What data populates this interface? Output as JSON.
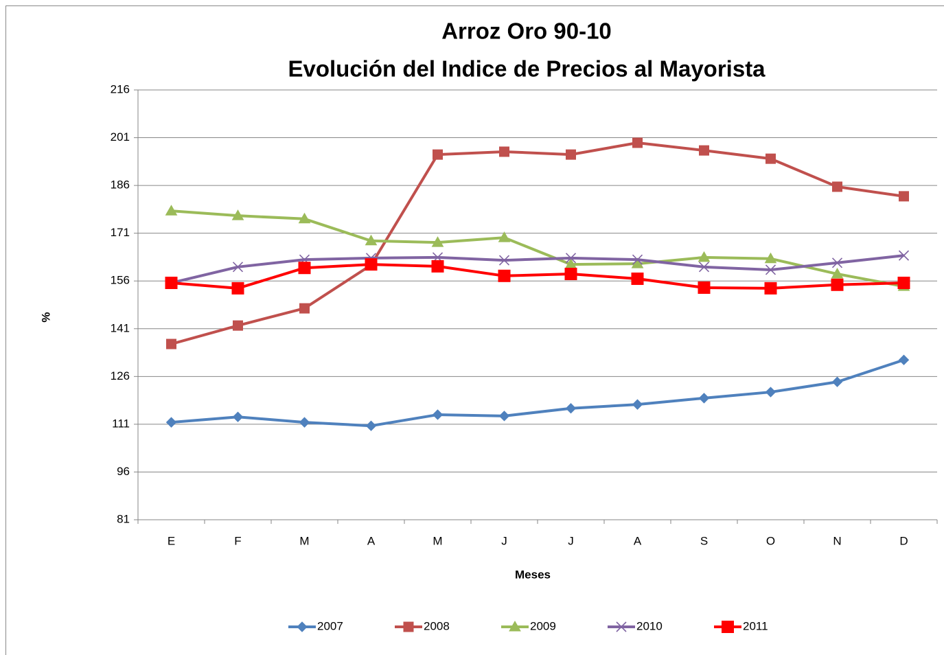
{
  "chart_data": {
    "type": "line",
    "title": "Arroz Oro 90-10",
    "subtitle": "Evolución del Indice de Precios al Mayorista",
    "x_label": "Meses",
    "y_label": "%",
    "categories": [
      "E",
      "F",
      "M",
      "A",
      "M",
      "J",
      "J",
      "A",
      "S",
      "O",
      "N",
      "D"
    ],
    "series": [
      {
        "name": "2007",
        "color": "#4f81bd",
        "marker": "diamond",
        "values": [
          111.6,
          113.3,
          111.6,
          110.5,
          114,
          113.6,
          116,
          117.2,
          119.2,
          121.1,
          124.3,
          131.2
        ]
      },
      {
        "name": "2008",
        "color": "#c0504d",
        "marker": "square",
        "values": [
          136.2,
          142,
          147.4,
          161,
          195.7,
          196.6,
          195.7,
          199.4,
          197,
          194.4,
          185.6,
          182.6
        ]
      },
      {
        "name": "2009",
        "color": "#9bbb59",
        "marker": "triangle",
        "values": [
          178,
          176.5,
          175.5,
          168.6,
          168.1,
          169.6,
          161.2,
          161.4,
          163.4,
          163,
          158.2,
          154.3
        ]
      },
      {
        "name": "2010",
        "color": "#8064a2",
        "marker": "x",
        "values": [
          155.4,
          160.4,
          162.7,
          163.2,
          163.4,
          162.5,
          163.2,
          162.7,
          160.4,
          159.5,
          161.7,
          164
        ]
      },
      {
        "name": "2011",
        "color": "#ff0000",
        "marker": "bigsquare",
        "values": [
          155.4,
          153.7,
          160.1,
          161.2,
          160.6,
          157.6,
          158.2,
          156.7,
          153.9,
          153.7,
          154.8,
          155.4
        ]
      }
    ],
    "ylim": [
      81,
      216
    ],
    "yticks": [
      81,
      96,
      111,
      126,
      141,
      156,
      171,
      186,
      201,
      216
    ],
    "grid": true,
    "legend": "bottom"
  }
}
